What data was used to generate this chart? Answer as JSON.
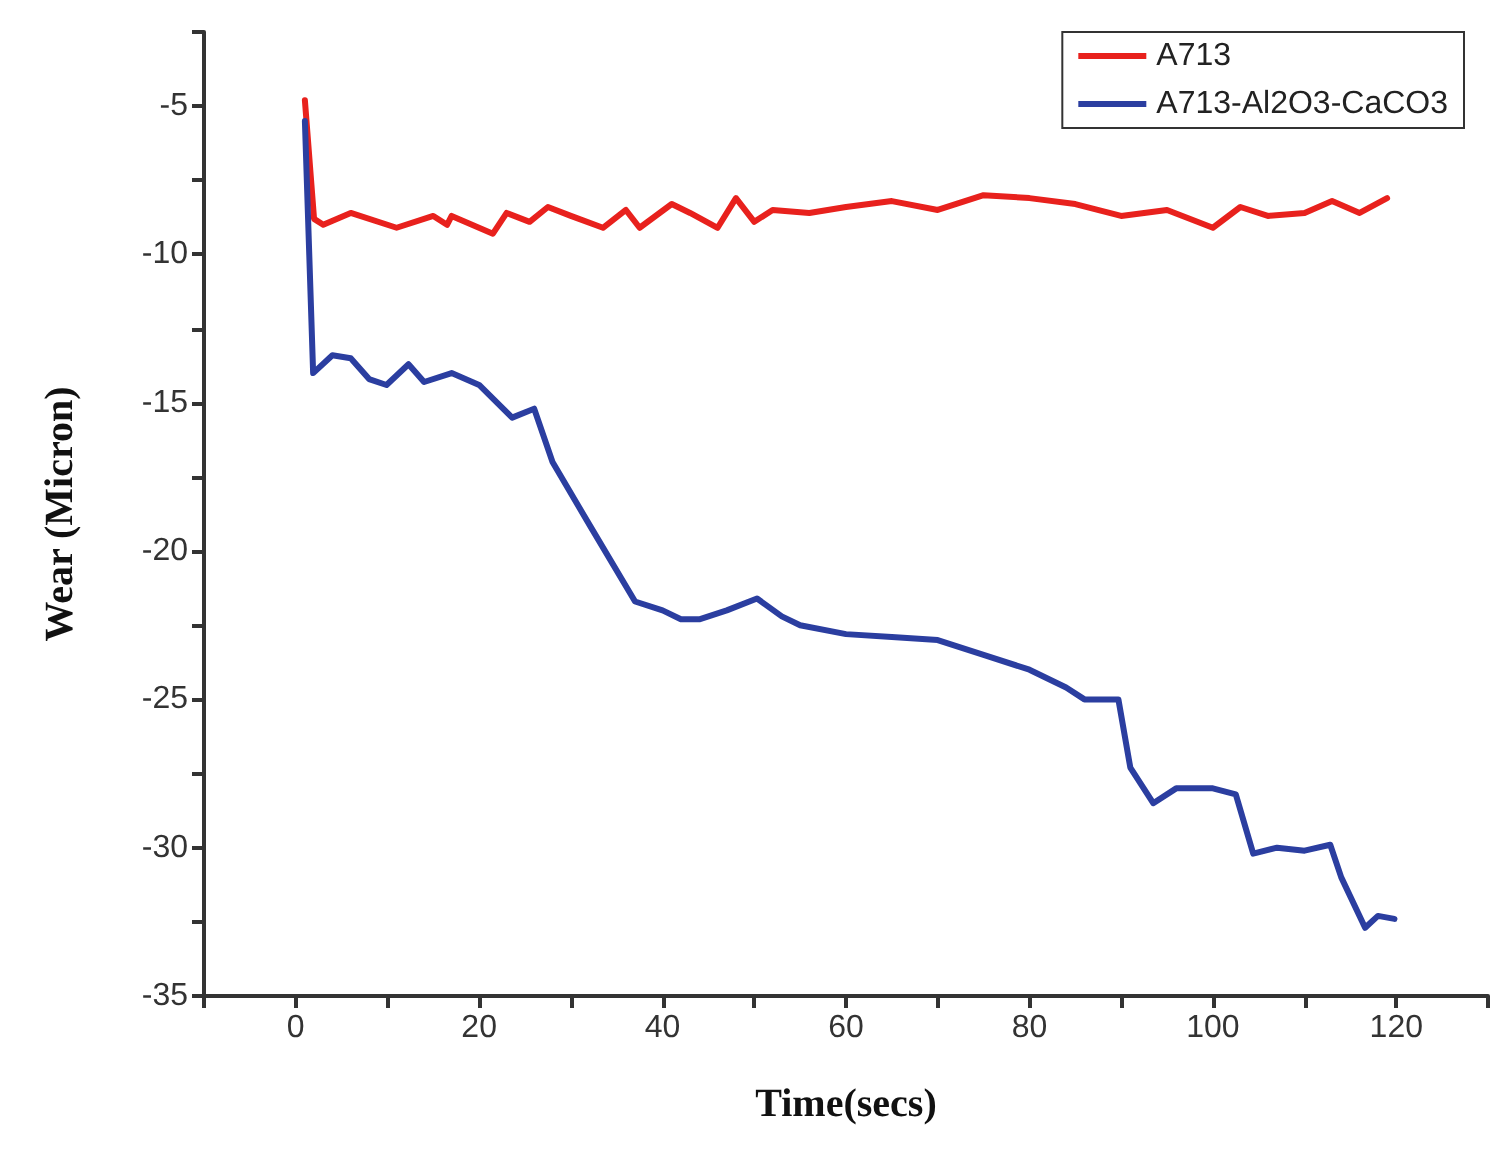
{
  "chart_data": {
    "type": "line",
    "xlabel": "Time(secs)",
    "ylabel": "Wear (Micron)",
    "xlim": [
      -10,
      130
    ],
    "ylim": [
      -35,
      -2.5
    ],
    "xticks": [
      {
        "value": -10,
        "label": null
      },
      0,
      {
        "value": 10,
        "label": null
      },
      20,
      {
        "value": 30,
        "label": null
      },
      40,
      {
        "value": 50,
        "label": null
      },
      60,
      {
        "value": 70,
        "label": null
      },
      80,
      {
        "value": 90,
        "label": null
      },
      100,
      {
        "value": 110,
        "label": null
      },
      120,
      {
        "value": 130,
        "label": null
      }
    ],
    "yticks": [
      -35,
      {
        "value": -32.5,
        "label": null
      },
      -30,
      {
        "value": -27.5,
        "label": null
      },
      -25,
      {
        "value": -22.5,
        "label": null
      },
      -20,
      {
        "value": -17.5,
        "label": null
      },
      -15,
      {
        "value": -12.5,
        "label": null
      },
      -10,
      {
        "value": -7.5,
        "label": null
      },
      -5,
      {
        "value": -2.5,
        "label": null
      }
    ],
    "grid": false,
    "legend": "top right",
    "marker": "none",
    "line_style": "solid",
    "series": [
      {
        "name": "A713",
        "color": "#e8211d",
        "x": [
          1,
          2,
          3,
          6,
          11,
          15,
          16.5,
          17,
          21.5,
          23,
          25.5,
          27.5,
          30,
          33.5,
          36,
          37.5,
          41,
          43,
          46,
          48,
          50,
          52,
          56,
          60,
          65,
          70,
          75,
          80,
          85,
          90,
          95,
          100,
          103,
          106,
          110,
          113,
          116,
          119
        ],
        "values": [
          -4.8,
          -8.8,
          -9.0,
          -8.6,
          -9.1,
          -8.7,
          -9.0,
          -8.7,
          -9.3,
          -8.6,
          -8.9,
          -8.4,
          -8.7,
          -9.1,
          -8.5,
          -9.1,
          -8.3,
          -8.6,
          -9.1,
          -8.1,
          -8.9,
          -8.5,
          -8.6,
          -8.4,
          -8.2,
          -8.5,
          -8.0,
          -8.1,
          -8.3,
          -8.7,
          -8.5,
          -9.1,
          -8.4,
          -8.7,
          -8.6,
          -8.2,
          -8.6,
          -8.1
        ]
      },
      {
        "name": "A713-Al2O3-CaCO3",
        "color": "#2b3ea0",
        "x": [
          1,
          1.9,
          4,
          6,
          8,
          9.9,
          12.3,
          14,
          17,
          20,
          23.6,
          26,
          28,
          32,
          37,
          40,
          42,
          44,
          47,
          50.3,
          53,
          55,
          60,
          65,
          70,
          75,
          80,
          84,
          86,
          88,
          89.7,
          91,
          93.5,
          96,
          100,
          102.5,
          104.4,
          107,
          110,
          112.8,
          114,
          116.6,
          118,
          119.8
        ],
        "values": [
          -5.5,
          -14,
          -13.4,
          -13.5,
          -14.2,
          -14.4,
          -13.7,
          -14.3,
          -14.0,
          -14.4,
          -15.5,
          -15.2,
          -17,
          -19.1,
          -21.7,
          -22.0,
          -22.3,
          -22.3,
          -22.0,
          -21.6,
          -22.2,
          -22.5,
          -22.8,
          -22.9,
          -23.0,
          -23.5,
          -24.0,
          -24.6,
          -25.0,
          -25.0,
          -25.0,
          -27.3,
          -28.5,
          -28.0,
          -28.0,
          -28.2,
          -30.2,
          -30.0,
          -30.1,
          -29.9,
          -31.0,
          -32.7,
          -32.3,
          -32.4
        ]
      }
    ]
  }
}
